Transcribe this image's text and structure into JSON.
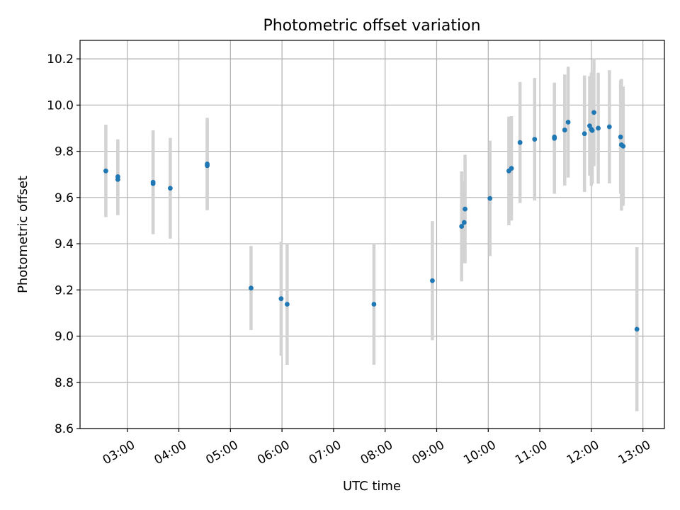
{
  "chart_data": {
    "type": "scatter",
    "title": "Photometric offset variation",
    "xlabel": "UTC time",
    "ylabel": "Photometric offset",
    "x_unit": "UTC hour of day",
    "xlim": [
      "02:05",
      "13:25"
    ],
    "ylim": [
      8.6,
      10.28
    ],
    "x_ticks": [
      "03:00",
      "04:00",
      "05:00",
      "06:00",
      "07:00",
      "08:00",
      "09:00",
      "10:00",
      "11:00",
      "12:00",
      "13:00"
    ],
    "y_ticks": [
      "8.6",
      "8.8",
      "9.0",
      "9.2",
      "9.4",
      "9.6",
      "9.8",
      "10.0",
      "10.2"
    ],
    "grid": true,
    "errorbar_color": "#d3d3d3",
    "point_color": "#1f77b4",
    "points": [
      {
        "x": "02:35",
        "y": 9.715,
        "err": 0.2
      },
      {
        "x": "02:49",
        "y": 9.678,
        "err": 0.155
      },
      {
        "x": "02:49",
        "y": 9.69,
        "err": 0.162
      },
      {
        "x": "03:30",
        "y": 9.66,
        "err": 0.218
      },
      {
        "x": "03:30",
        "y": 9.666,
        "err": 0.225
      },
      {
        "x": "03:50",
        "y": 9.64,
        "err": 0.218
      },
      {
        "x": "04:33",
        "y": 9.738,
        "err": 0.192
      },
      {
        "x": "04:33",
        "y": 9.745,
        "err": 0.2
      },
      {
        "x": "05:24",
        "y": 9.208,
        "err": 0.182
      },
      {
        "x": "05:59",
        "y": 9.162,
        "err": 0.247
      },
      {
        "x": "06:06",
        "y": 9.138,
        "err": 0.262
      },
      {
        "x": "07:47",
        "y": 9.138,
        "err": 0.262
      },
      {
        "x": "08:55",
        "y": 9.24,
        "err": 0.258
      },
      {
        "x": "09:29",
        "y": 9.475,
        "err": 0.238
      },
      {
        "x": "09:32",
        "y": 9.492,
        "err": 0.176
      },
      {
        "x": "09:33",
        "y": 9.55,
        "err": 0.235
      },
      {
        "x": "10:02",
        "y": 9.596,
        "err": 0.25
      },
      {
        "x": "10:24",
        "y": 9.715,
        "err": 0.235
      },
      {
        "x": "10:27",
        "y": 9.726,
        "err": 0.226
      },
      {
        "x": "10:37",
        "y": 9.838,
        "err": 0.262
      },
      {
        "x": "10:54",
        "y": 9.852,
        "err": 0.265
      },
      {
        "x": "11:17",
        "y": 9.856,
        "err": 0.24
      },
      {
        "x": "11:17",
        "y": 9.862,
        "err": 0.235
      },
      {
        "x": "11:29",
        "y": 9.892,
        "err": 0.24
      },
      {
        "x": "11:33",
        "y": 9.926,
        "err": 0.24
      },
      {
        "x": "11:52",
        "y": 9.876,
        "err": 0.252
      },
      {
        "x": "11:58",
        "y": 9.91,
        "err": 0.215
      },
      {
        "x": "12:00",
        "y": 9.895,
        "err": 0.245
      },
      {
        "x": "12:01",
        "y": 9.89,
        "err": 0.23
      },
      {
        "x": "12:03",
        "y": 9.968,
        "err": 0.232
      },
      {
        "x": "12:08",
        "y": 9.9,
        "err": 0.24
      },
      {
        "x": "12:21",
        "y": 9.906,
        "err": 0.245
      },
      {
        "x": "12:34",
        "y": 9.862,
        "err": 0.245
      },
      {
        "x": "12:35",
        "y": 9.828,
        "err": 0.285
      },
      {
        "x": "12:37",
        "y": 9.822,
        "err": 0.258
      },
      {
        "x": "12:53",
        "y": 9.03,
        "err": 0.355
      }
    ]
  }
}
